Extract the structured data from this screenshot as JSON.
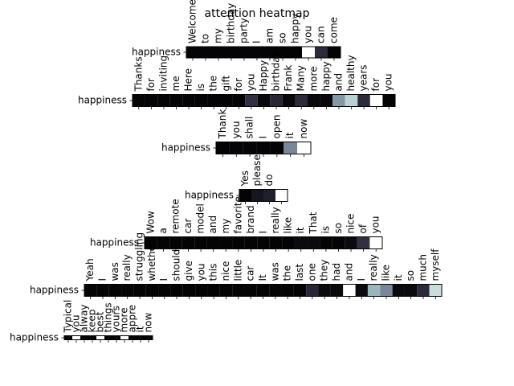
{
  "title": "attention heatmap",
  "chart_data": [
    {
      "type": "heatmap",
      "ylabel": "happiness",
      "colormap": "bone",
      "categories": [
        "Welcome",
        "to",
        "my",
        "birthday",
        "party",
        "I",
        "am",
        "so",
        "happy",
        "you",
        "can",
        "come"
      ],
      "values": [
        0.02,
        0.02,
        0.02,
        0.02,
        0.02,
        0.02,
        0.02,
        0.02,
        0.02,
        1.0,
        0.2,
        0.02
      ]
    },
    {
      "type": "heatmap",
      "ylabel": "happiness",
      "colormap": "bone",
      "categories": [
        "Thanks",
        "for",
        "inviting",
        "me",
        "Here",
        "is",
        "the",
        "gift",
        "for",
        "you",
        "Happy",
        "birthday",
        "Frank",
        "Many",
        "more",
        "happy",
        "and",
        "healthy",
        "years",
        "for",
        "you"
      ],
      "values": [
        0.02,
        0.02,
        0.02,
        0.02,
        0.02,
        0.02,
        0.02,
        0.02,
        0.02,
        0.22,
        0.04,
        0.18,
        0.04,
        0.2,
        0.04,
        0.04,
        0.6,
        0.8,
        0.2,
        1.0,
        0.02
      ]
    },
    {
      "type": "heatmap",
      "ylabel": "happiness",
      "colormap": "bone",
      "categories": [
        "Thank",
        "you",
        "shall",
        "I",
        "open",
        "it",
        "now"
      ],
      "values": [
        0.02,
        0.02,
        0.02,
        0.02,
        0.02,
        0.55,
        1.0
      ]
    },
    {
      "type": "heatmap",
      "ylabel": "happiness",
      "colormap": "bone",
      "categories": [
        "Yes",
        "please",
        "do",
        null
      ],
      "values": [
        0.02,
        0.1,
        0.15,
        1.0
      ]
    },
    {
      "type": "heatmap",
      "ylabel": "happiness",
      "colormap": "bone",
      "categories": [
        "Wow",
        "a",
        "remote",
        "car",
        "model",
        "and",
        "my",
        "favorite",
        "brand",
        "I",
        "really",
        "like",
        "it",
        "That",
        "is",
        "so",
        "nice",
        "of",
        "you"
      ],
      "values": [
        0.02,
        0.02,
        0.02,
        0.02,
        0.02,
        0.02,
        0.02,
        0.02,
        0.02,
        0.02,
        0.02,
        0.02,
        0.05,
        0.05,
        0.02,
        0.02,
        0.05,
        0.22,
        1.0
      ]
    },
    {
      "type": "heatmap",
      "ylabel": "happiness",
      "colormap": "bone",
      "categories": [
        "Yeah",
        "I",
        "was",
        "really",
        "struggling",
        "whether",
        "I",
        "should",
        "give",
        "you",
        "this",
        "nice",
        "little",
        "car",
        "It",
        "was",
        "the",
        "last",
        "one",
        "they",
        "had",
        "and",
        "I",
        "really",
        "like",
        "it",
        "so",
        "much",
        "myself"
      ],
      "values": [
        0.02,
        0.02,
        0.02,
        0.02,
        0.02,
        0.02,
        0.02,
        0.02,
        0.02,
        0.02,
        0.02,
        0.02,
        0.02,
        0.02,
        0.02,
        0.02,
        0.02,
        0.02,
        0.18,
        0.05,
        0.05,
        1.0,
        0.05,
        0.7,
        0.55,
        0.05,
        0.05,
        0.2,
        0.85
      ]
    },
    {
      "type": "heatmap",
      "ylabel": "happiness",
      "colormap": "bone",
      "categories": [
        "Typical",
        "you",
        "alway",
        "keep",
        "best",
        "things",
        "yours",
        "more",
        "appre",
        "it",
        "now"
      ],
      "values": [
        0.02,
        1.0,
        0.02,
        0.02,
        1.0,
        0.02,
        0.02,
        1.0,
        0.02,
        0.02,
        0.02
      ]
    }
  ]
}
